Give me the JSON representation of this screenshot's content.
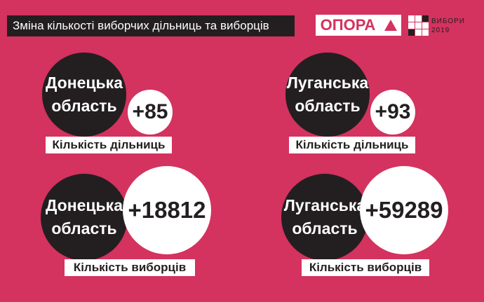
{
  "title": "Зміна кількості виборчих дільниць та виборців",
  "logos": {
    "opora": "ОПОРА",
    "vybory_line1": "ВИБОРИ",
    "vybory_line2": "2019"
  },
  "panels": [
    {
      "region": "Донецька область",
      "value": "+85",
      "label": "Кількість дільниць"
    },
    {
      "region": "Луганська область",
      "value": "+93",
      "label": "Кількість дільниць"
    },
    {
      "region": "Донецька область",
      "value": "+18812",
      "label": "Кількість виборців"
    },
    {
      "region": "Луганська область",
      "value": "+59289",
      "label": "Кількість виборців"
    }
  ],
  "colors": {
    "background": "#d4325f",
    "dark": "#231f20",
    "light": "#ffffff"
  }
}
